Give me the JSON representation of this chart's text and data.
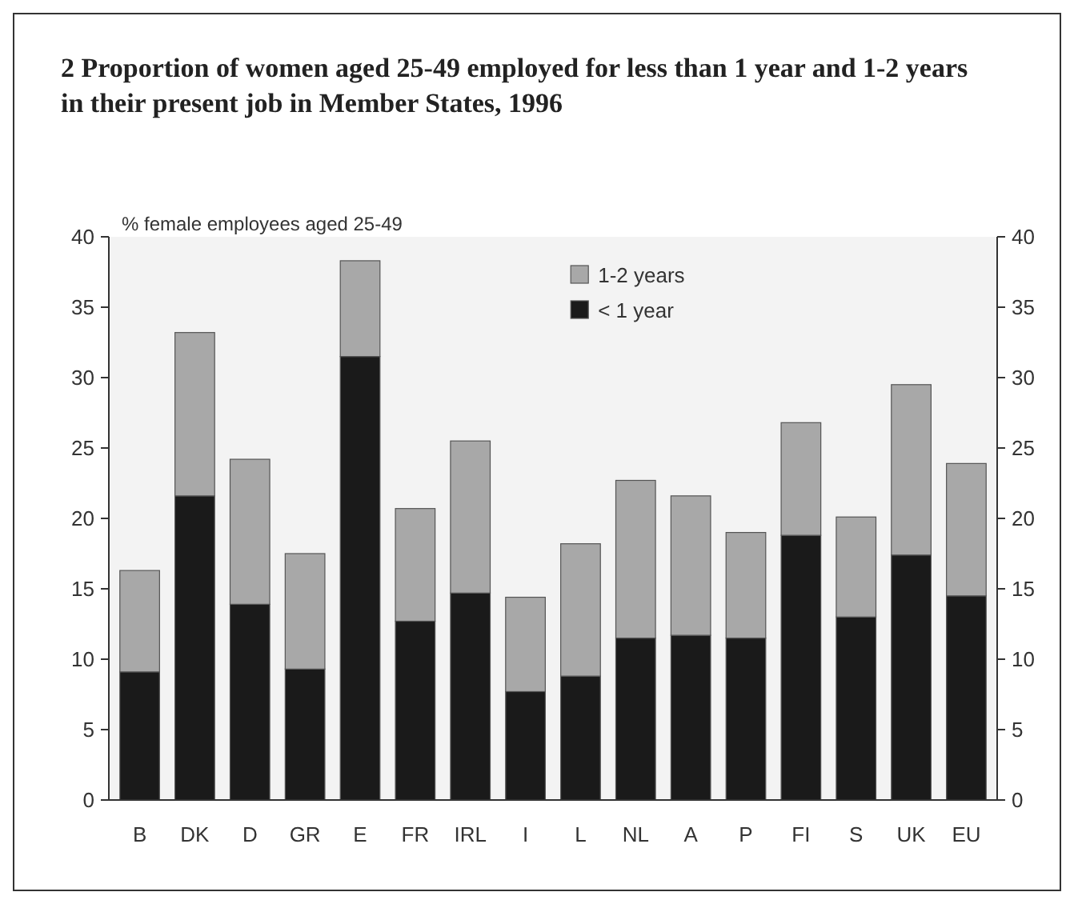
{
  "chart_data": {
    "type": "bar",
    "title": "2 Proportion of women aged 25-49 employed for less than 1 year and 1-2 years in their present job in Member States, 1996",
    "ylabel": "% female employees aged 25-49",
    "categories": [
      "B",
      "DK",
      "D",
      "GR",
      "E",
      "FR",
      "IRL",
      "I",
      "L",
      "NL",
      "A",
      "P",
      "FI",
      "S",
      "UK",
      "EU"
    ],
    "stacked": true,
    "series": [
      {
        "name": "< 1 year",
        "color": "#1a1a1a",
        "values": [
          9.1,
          21.6,
          13.9,
          9.3,
          31.5,
          12.7,
          14.7,
          7.7,
          8.8,
          11.5,
          11.7,
          11.5,
          18.8,
          13.0,
          17.4,
          14.5
        ]
      },
      {
        "name": "1-2 years",
        "color": "#a8a8a8",
        "values": [
          7.2,
          11.6,
          10.3,
          8.2,
          6.8,
          8.0,
          10.8,
          6.7,
          9.4,
          11.2,
          9.9,
          7.5,
          8.0,
          7.1,
          12.1,
          9.4
        ]
      }
    ],
    "ylim": [
      0,
      40
    ],
    "yticks": [
      0,
      5,
      10,
      15,
      20,
      25,
      30,
      35,
      40
    ],
    "y2lim": [
      0,
      40
    ],
    "y2ticks": [
      0,
      5,
      10,
      15,
      20,
      25,
      30,
      35,
      40
    ],
    "grid": false,
    "legend": "top"
  }
}
